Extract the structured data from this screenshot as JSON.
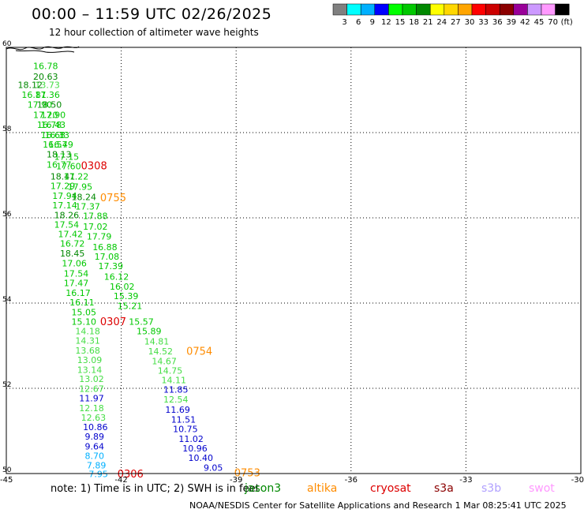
{
  "title": "00:00 – 11:59 UTC 02/26/2025",
  "subtitle": "12 hour collection of altimeter wave heights",
  "note": "note:  1) Time is in UTC;  2) SWH is in feet",
  "credit": "NOAA/NESDIS Center for Satellite Applications and Research      1 Mar 08:25:41 UTC 2025",
  "colorbar": {
    "colors": [
      "#808080",
      "#00ffff",
      "#00b0ff",
      "#0000ff",
      "#00ff00",
      "#00c800",
      "#008800",
      "#ffff00",
      "#ffd700",
      "#ffa500",
      "#ff0000",
      "#cc0000",
      "#8b0000",
      "#990099",
      "#cc99ff",
      "#ff99ff",
      "#000000"
    ],
    "labels": [
      "3",
      "6",
      "9",
      "12",
      "15",
      "18",
      "21",
      "24",
      "27",
      "30",
      "33",
      "36",
      "39",
      "42",
      "45",
      "70",
      "(ft)"
    ]
  },
  "satellites": [
    {
      "name": "jason3",
      "color": "#008800"
    },
    {
      "name": "altika",
      "color": "#ff8c00"
    },
    {
      "name": "cryosat",
      "color": "#dd0000"
    },
    {
      "name": "s3a",
      "color": "#8b0000"
    },
    {
      "name": "s3b",
      "color": "#b0a0ff"
    },
    {
      "name": "swot",
      "color": "#ff99ff"
    }
  ],
  "chart_data": {
    "type": "scatter",
    "xlim": [
      -45,
      -30
    ],
    "ylim": [
      50,
      60
    ],
    "xticks": [
      "-45",
      "-42",
      "-39",
      "-36",
      "-33",
      "-30"
    ],
    "yticks": [
      "50",
      "52",
      "54",
      "56",
      "58",
      "60"
    ],
    "x_tick_values": [
      -45,
      -42,
      -39,
      -36,
      -33,
      -30
    ],
    "y_tick_values": [
      50,
      52,
      54,
      56,
      58,
      60
    ],
    "grid": true,
    "points": [
      {
        "x": -44.3,
        "y": 59.55,
        "label": "16.78",
        "color": "#00c800"
      },
      {
        "x": -44.3,
        "y": 59.3,
        "label": "20.63",
        "color": "#008800"
      },
      {
        "x": -44.25,
        "y": 59.1,
        "label": "13.73",
        "color": "#44dd44"
      },
      {
        "x": -44.7,
        "y": 59.1,
        "label": "18.12",
        "color": "#008800"
      },
      {
        "x": -44.25,
        "y": 58.87,
        "label": "17.36",
        "color": "#00c800"
      },
      {
        "x": -44.6,
        "y": 58.87,
        "label": "16.81",
        "color": "#00c800"
      },
      {
        "x": -44.2,
        "y": 58.64,
        "label": "18.50",
        "color": "#008800"
      },
      {
        "x": -44.45,
        "y": 58.64,
        "label": "17.90",
        "color": "#00c800"
      },
      {
        "x": -44.1,
        "y": 58.4,
        "label": "17.90",
        "color": "#00c800"
      },
      {
        "x": -44.3,
        "y": 58.4,
        "label": "17.20",
        "color": "#00c800"
      },
      {
        "x": -44.1,
        "y": 58.17,
        "label": "16.43",
        "color": "#00c800"
      },
      {
        "x": -44.2,
        "y": 58.17,
        "label": "16.78",
        "color": "#00c800"
      },
      {
        "x": -44.0,
        "y": 57.93,
        "label": "16.33",
        "color": "#00c800"
      },
      {
        "x": -44.1,
        "y": 57.93,
        "label": "16.68",
        "color": "#00c800"
      },
      {
        "x": -43.9,
        "y": 57.7,
        "label": "16.49",
        "color": "#00c800"
      },
      {
        "x": -44.05,
        "y": 57.7,
        "label": "16.57",
        "color": "#00c800"
      },
      {
        "x": -43.95,
        "y": 57.47,
        "label": "18.13",
        "color": "#008800"
      },
      {
        "x": -43.75,
        "y": 57.42,
        "label": "17.15",
        "color": "#00c800"
      },
      {
        "x": -43.95,
        "y": 57.23,
        "label": "16.77",
        "color": "#00c800"
      },
      {
        "x": -43.7,
        "y": 57.19,
        "label": "17.60",
        "color": "#00c800"
      },
      {
        "x": -43.85,
        "y": 56.95,
        "label": "18.41",
        "color": "#008800"
      },
      {
        "x": -43.5,
        "y": 56.95,
        "label": "17.22",
        "color": "#00c800"
      },
      {
        "x": -43.85,
        "y": 56.73,
        "label": "17.29",
        "color": "#00c800"
      },
      {
        "x": -43.4,
        "y": 56.71,
        "label": "17.95",
        "color": "#00c800"
      },
      {
        "x": -43.8,
        "y": 56.5,
        "label": "17.94",
        "color": "#00c800"
      },
      {
        "x": -43.3,
        "y": 56.47,
        "label": "18.24",
        "color": "#008800"
      },
      {
        "x": -43.8,
        "y": 56.28,
        "label": "17.14",
        "color": "#00c800"
      },
      {
        "x": -43.2,
        "y": 56.25,
        "label": "17.37",
        "color": "#00c800"
      },
      {
        "x": -43.75,
        "y": 56.05,
        "label": "18.26",
        "color": "#008800"
      },
      {
        "x": -43.0,
        "y": 56.03,
        "label": "17.88",
        "color": "#00c800"
      },
      {
        "x": -43.75,
        "y": 55.82,
        "label": "17.54",
        "color": "#00c800"
      },
      {
        "x": -43.0,
        "y": 55.78,
        "label": "17.02",
        "color": "#00c800"
      },
      {
        "x": -43.65,
        "y": 55.6,
        "label": "17.42",
        "color": "#00c800"
      },
      {
        "x": -42.9,
        "y": 55.55,
        "label": "17.79",
        "color": "#00c800"
      },
      {
        "x": -43.6,
        "y": 55.38,
        "label": "16.72",
        "color": "#00c800"
      },
      {
        "x": -42.75,
        "y": 55.3,
        "label": "16.88",
        "color": "#00c800"
      },
      {
        "x": -43.6,
        "y": 55.15,
        "label": "18.45",
        "color": "#008800"
      },
      {
        "x": -42.7,
        "y": 55.07,
        "label": "17.08",
        "color": "#00c800"
      },
      {
        "x": -43.55,
        "y": 54.92,
        "label": "17.06",
        "color": "#00c800"
      },
      {
        "x": -42.6,
        "y": 54.85,
        "label": "17.39",
        "color": "#00c800"
      },
      {
        "x": -43.5,
        "y": 54.68,
        "label": "17.54",
        "color": "#00c800"
      },
      {
        "x": -42.45,
        "y": 54.6,
        "label": "16.12",
        "color": "#00c800"
      },
      {
        "x": -43.5,
        "y": 54.45,
        "label": "17.47",
        "color": "#00c800"
      },
      {
        "x": -42.3,
        "y": 54.37,
        "label": "16.02",
        "color": "#00c800"
      },
      {
        "x": -43.45,
        "y": 54.22,
        "label": "16.17",
        "color": "#00c800"
      },
      {
        "x": -42.2,
        "y": 54.15,
        "label": "15.39",
        "color": "#00c800"
      },
      {
        "x": -43.35,
        "y": 54.0,
        "label": "16.11",
        "color": "#00c800"
      },
      {
        "x": -42.1,
        "y": 53.92,
        "label": "15.21",
        "color": "#00c800"
      },
      {
        "x": -43.3,
        "y": 53.77,
        "label": "15.05",
        "color": "#00c800"
      },
      {
        "x": -43.3,
        "y": 53.55,
        "label": "15.10",
        "color": "#00c800"
      },
      {
        "x": -41.8,
        "y": 53.55,
        "label": "15.57",
        "color": "#00c800"
      },
      {
        "x": -43.2,
        "y": 53.32,
        "label": "14.18",
        "color": "#44dd44"
      },
      {
        "x": -41.6,
        "y": 53.32,
        "label": "15.89",
        "color": "#00c800"
      },
      {
        "x": -43.2,
        "y": 53.1,
        "label": "14.31",
        "color": "#44dd44"
      },
      {
        "x": -41.4,
        "y": 53.08,
        "label": "14.81",
        "color": "#44dd44"
      },
      {
        "x": -43.2,
        "y": 52.87,
        "label": "13.68",
        "color": "#44dd44"
      },
      {
        "x": -41.3,
        "y": 52.85,
        "label": "14.52",
        "color": "#44dd44"
      },
      {
        "x": -43.15,
        "y": 52.65,
        "label": "13.09",
        "color": "#44dd44"
      },
      {
        "x": -41.2,
        "y": 52.62,
        "label": "14.67",
        "color": "#44dd44"
      },
      {
        "x": -43.15,
        "y": 52.42,
        "label": "13.14",
        "color": "#44dd44"
      },
      {
        "x": -41.05,
        "y": 52.4,
        "label": "14.75",
        "color": "#44dd44"
      },
      {
        "x": -43.1,
        "y": 52.2,
        "label": "13.02",
        "color": "#44dd44"
      },
      {
        "x": -40.95,
        "y": 52.18,
        "label": "14.11",
        "color": "#44dd44"
      },
      {
        "x": -43.1,
        "y": 51.97,
        "label": "12.67",
        "color": "#44dd44"
      },
      {
        "x": -40.9,
        "y": 51.95,
        "label": "11.85",
        "color": "#0000cc"
      },
      {
        "x": -43.1,
        "y": 51.75,
        "label": "11.97",
        "color": "#0000cc"
      },
      {
        "x": -40.9,
        "y": 51.72,
        "label": "12.54",
        "color": "#44dd44"
      },
      {
        "x": -43.1,
        "y": 51.52,
        "label": "12.18",
        "color": "#44dd44"
      },
      {
        "x": -40.85,
        "y": 51.48,
        "label": "11.69",
        "color": "#0000cc"
      },
      {
        "x": -43.05,
        "y": 51.3,
        "label": "12.63",
        "color": "#44dd44"
      },
      {
        "x": -40.7,
        "y": 51.25,
        "label": "11.51",
        "color": "#0000cc"
      },
      {
        "x": -43.0,
        "y": 51.07,
        "label": "10.86",
        "color": "#0000cc"
      },
      {
        "x": -40.65,
        "y": 51.03,
        "label": "10.75",
        "color": "#0000cc"
      },
      {
        "x": -42.95,
        "y": 50.85,
        "label": "9.89",
        "color": "#0000cc"
      },
      {
        "x": -40.5,
        "y": 50.8,
        "label": "11.02",
        "color": "#0000cc"
      },
      {
        "x": -42.95,
        "y": 50.62,
        "label": "9.64",
        "color": "#0000cc"
      },
      {
        "x": -40.4,
        "y": 50.57,
        "label": "10.96",
        "color": "#0000cc"
      },
      {
        "x": -42.95,
        "y": 50.4,
        "label": "8.70",
        "color": "#00b0ff"
      },
      {
        "x": -40.25,
        "y": 50.35,
        "label": "10.40",
        "color": "#0000cc"
      },
      {
        "x": -42.9,
        "y": 50.18,
        "label": "7.89",
        "color": "#00b0ff"
      },
      {
        "x": -39.85,
        "y": 50.12,
        "label": "9.05",
        "color": "#0000cc"
      },
      {
        "x": -42.85,
        "y": 49.97,
        "label": "7.95",
        "color": "#00b0ff"
      }
    ],
    "time_labels": [
      {
        "x": -43.05,
        "y": 57.2,
        "label": "0308",
        "color": "#dd0000"
      },
      {
        "x": -42.55,
        "y": 56.45,
        "label": "0755",
        "color": "#ff8c00"
      },
      {
        "x": -42.55,
        "y": 53.55,
        "label": "0307",
        "color": "#dd0000"
      },
      {
        "x": -40.3,
        "y": 52.85,
        "label": "0754",
        "color": "#ff8c00"
      },
      {
        "x": -42.1,
        "y": 49.97,
        "label": "0306",
        "color": "#dd0000"
      },
      {
        "x": -39.05,
        "y": 50.0,
        "label": "0753",
        "color": "#ff8c00"
      }
    ]
  }
}
